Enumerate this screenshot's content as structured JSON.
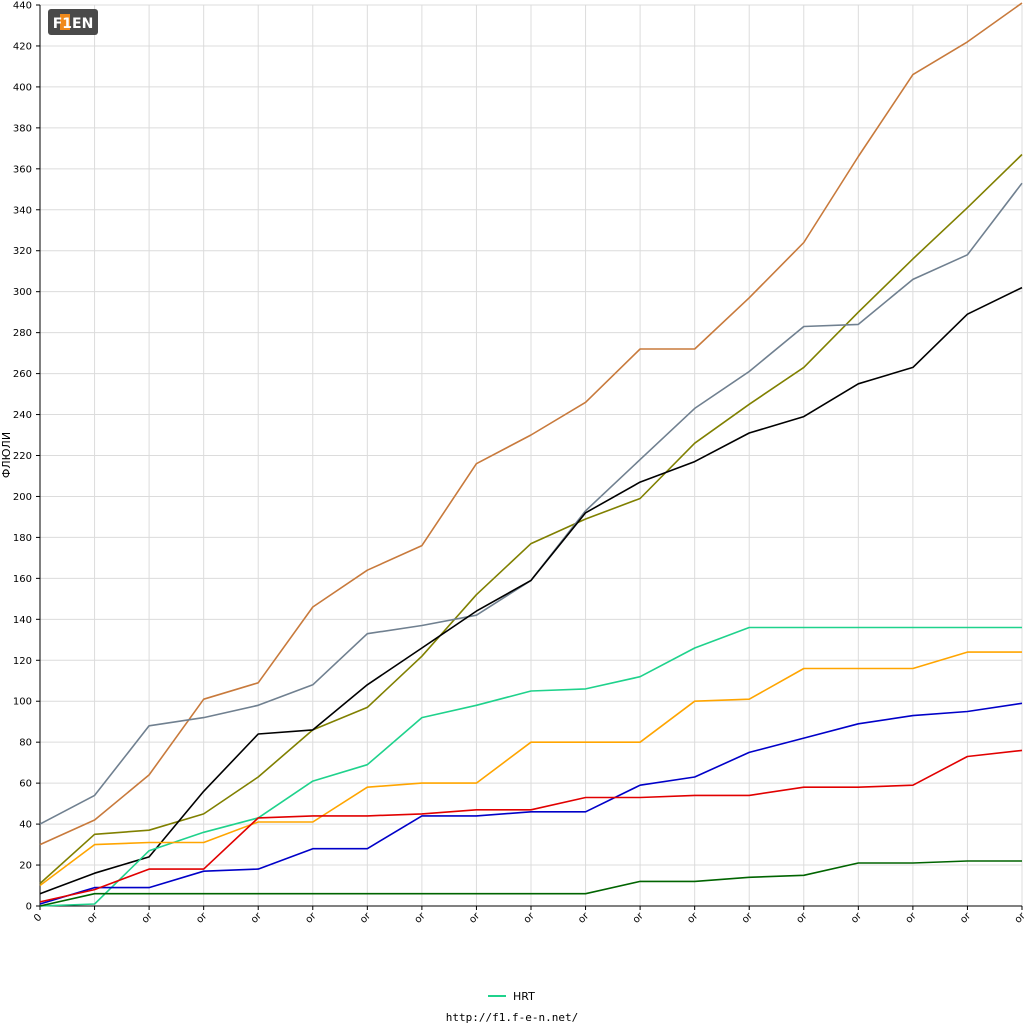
{
  "logo": {
    "text": "F1EN"
  },
  "footer": {
    "url": "http://f1.f-e-n.net/"
  },
  "chart_data": {
    "type": "line",
    "title": "",
    "xlabel": "",
    "ylabel": "ФЛЮЛИ",
    "ylim": [
      0,
      440
    ],
    "ytick_step": 20,
    "grid": true,
    "legend_position": "bottom",
    "categories": [
      "0",
      "or",
      "or",
      "or",
      "or",
      "or",
      "or",
      "or",
      "or",
      "or",
      "or",
      "or",
      "or",
      "or",
      "or",
      "or",
      "or",
      "or",
      "or"
    ],
    "series": [
      {
        "color": "#c87a3c",
        "values": [
          30,
          42,
          64,
          101,
          109,
          146,
          164,
          176,
          216,
          230,
          246,
          272,
          272,
          297,
          324,
          366,
          406,
          422,
          441
        ]
      },
      {
        "color": "#808000",
        "values": [
          11,
          35,
          37,
          45,
          63,
          86,
          97,
          122,
          152,
          177,
          189,
          199,
          226,
          245,
          263,
          290,
          316,
          341,
          367
        ]
      },
      {
        "color": "#708090",
        "values": [
          40,
          54,
          88,
          92,
          98,
          108,
          133,
          137,
          142,
          159,
          193,
          218,
          243,
          261,
          283,
          284,
          306,
          318,
          353
        ]
      },
      {
        "color": "#000000",
        "values": [
          6,
          16,
          24,
          56,
          84,
          86,
          108,
          126,
          144,
          159,
          192,
          207,
          217,
          231,
          239,
          255,
          263,
          289,
          302
        ]
      },
      {
        "name": "HRT",
        "color": "#1fd28c",
        "values": [
          0,
          1,
          27,
          36,
          43,
          61,
          69,
          92,
          98,
          105,
          106,
          112,
          126,
          136,
          136,
          136,
          136,
          136,
          136
        ]
      },
      {
        "color": "#ffa500",
        "values": [
          10,
          30,
          31,
          31,
          41,
          41,
          58,
          60,
          60,
          80,
          80,
          80,
          100,
          101,
          116,
          116,
          116,
          124,
          124
        ]
      },
      {
        "color": "#0000c8",
        "values": [
          1,
          9,
          9,
          17,
          18,
          28,
          28,
          44,
          44,
          46,
          46,
          59,
          63,
          75,
          82,
          89,
          93,
          95,
          99
        ]
      },
      {
        "color": "#e10000",
        "values": [
          2,
          8,
          18,
          18,
          43,
          44,
          44,
          45,
          47,
          47,
          53,
          53,
          54,
          54,
          58,
          58,
          59,
          73,
          76
        ]
      },
      {
        "color": "#006400",
        "values": [
          0,
          6,
          6,
          6,
          6,
          6,
          6,
          6,
          6,
          6,
          6,
          12,
          12,
          14,
          15,
          21,
          21,
          22,
          22
        ]
      }
    ]
  }
}
